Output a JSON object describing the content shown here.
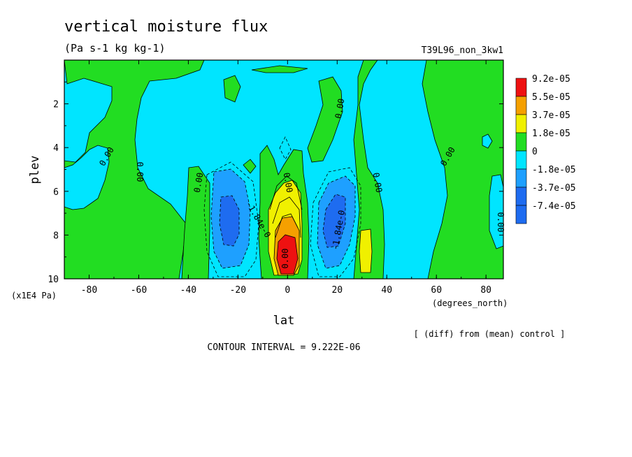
{
  "chart_data": {
    "type": "heatmap",
    "title": "vertical moisture flux",
    "units": "(Pa s-1 kg kg-1)",
    "run_label": "T39L96_non_3kw1",
    "xlabel": "lat",
    "x_units": "(degrees_north)",
    "ylabel": "plev",
    "y_units": "(x1E4 Pa)",
    "xlim": [
      -90,
      87
    ],
    "ylim": [
      0.1,
      10
    ],
    "y_axis_inverted": true,
    "x_ticks": [
      "-80",
      "-60",
      "-40",
      "-20",
      "0",
      "20",
      "40",
      "60",
      "80"
    ],
    "y_ticks": [
      "2",
      "4",
      "6",
      "8",
      "10"
    ],
    "contour_interval_text": "CONTOUR INTERVAL = 9.222E-06",
    "footnote": "[ (diff) from (mean) control ]",
    "contour_labels": [
      "0.00",
      "0.00",
      "0.00",
      "0.00",
      "0.00",
      "0.00",
      "0.00",
      "0.00",
      "0.00",
      "-1.84e-0",
      "-1.84e-0"
    ],
    "legend": {
      "placement": "right",
      "entries": [
        {
          "label": "9.2e-05",
          "color": "#ee1111"
        },
        {
          "label": "5.5e-05",
          "color": "#f5a000"
        },
        {
          "label": "3.7e-05",
          "color": "#f0f000"
        },
        {
          "label": "1.8e-05",
          "color": "#22dd22"
        },
        {
          "label": "0",
          "color": "#00e5ff"
        },
        {
          "label": "-1.8e-05",
          "color": "#1ea0ff"
        },
        {
          "label": "-3.7e-05",
          "color": "#1e6cf0"
        },
        {
          "label": "-7.4e-05",
          "color": "#1e6cf0"
        }
      ]
    },
    "regions": [
      {
        "name": "sh-polar-positive",
        "level": "1.8e-05",
        "color": "#22dd22",
        "x": [
          -90,
          -68
        ],
        "y": [
          0.1,
          10
        ]
      },
      {
        "name": "sh-40-positive",
        "level": "1.8e-05",
        "color": "#22dd22",
        "x": [
          -42,
          -34
        ],
        "y": [
          4.8,
          10
        ]
      },
      {
        "name": "sh-negative-cell",
        "level": "-1.8e-05",
        "color": "#1ea0ff",
        "x": [
          -30,
          -12
        ],
        "y": [
          4.8,
          9.4
        ]
      },
      {
        "name": "sh-negative-core",
        "level": "-3.7e-05",
        "color": "#1e6cf0",
        "x": [
          -25,
          -19
        ],
        "y": [
          6.3,
          8.2
        ]
      },
      {
        "name": "equatorial-positive",
        "level": "1.8e-05",
        "color": "#22dd22",
        "x": [
          -6,
          6
        ],
        "y": [
          3.8,
          10
        ]
      },
      {
        "name": "equatorial-3.7e-05",
        "level": "3.7e-05",
        "color": "#f0f000",
        "x": [
          -4,
          5
        ],
        "y": [
          6.2,
          9.6
        ]
      },
      {
        "name": "equatorial-5.5e-05",
        "level": "5.5e-05",
        "color": "#f5a000",
        "x": [
          -3,
          5
        ],
        "y": [
          7.0,
          9.6
        ]
      },
      {
        "name": "equatorial-max",
        "level": "9.2e-05",
        "color": "#ee1111",
        "x": [
          -2,
          4
        ],
        "y": [
          7.8,
          9.7
        ]
      },
      {
        "name": "nh-negative-cell",
        "level": "-1.8e-05",
        "color": "#1ea0ff",
        "x": [
          13,
          26
        ],
        "y": [
          5.5,
          9.4
        ]
      },
      {
        "name": "nh-negative-core",
        "level": "-3.7e-05",
        "color": "#1e6cf0",
        "x": [
          16,
          22
        ],
        "y": [
          6.2,
          8.4
        ]
      },
      {
        "name": "nh-35-positive",
        "level": "1.8e-05",
        "color": "#22dd22",
        "x": [
          28,
          42
        ],
        "y": [
          0.1,
          10
        ]
      },
      {
        "name": "nh-35-yellow",
        "level": "3.7e-05",
        "color": "#f0f000",
        "x": [
          31,
          35
        ],
        "y": [
          7.8,
          9.6
        ]
      },
      {
        "name": "nh-polar-positive",
        "level": "1.8e-05",
        "color": "#22dd22",
        "x": [
          68,
          87
        ],
        "y": [
          0.1,
          10
        ]
      }
    ]
  }
}
